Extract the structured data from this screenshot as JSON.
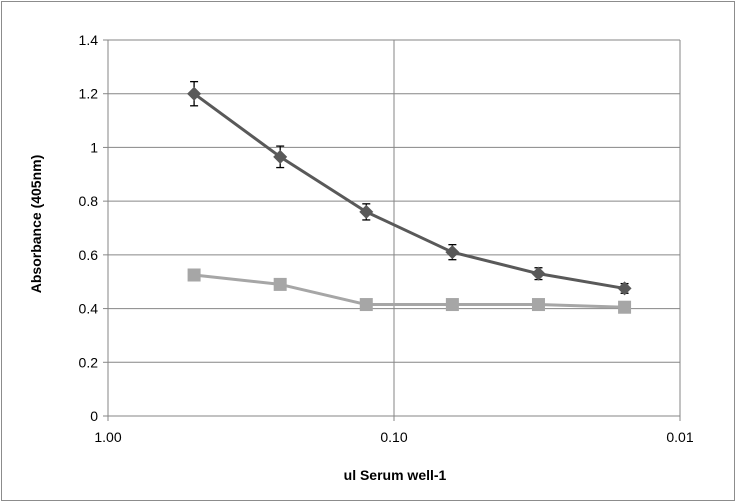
{
  "chart_data": {
    "type": "line",
    "title": "",
    "xlabel": "ul Serum well-1",
    "ylabel": "Absorbance (405nm)",
    "x_scale": "log",
    "x_reversed": true,
    "xlim": [
      1.0,
      0.01
    ],
    "ylim": [
      0,
      1.4
    ],
    "x_ticks": [
      1.0,
      0.1,
      0.01
    ],
    "x_tick_labels": [
      "1.00",
      "0.10",
      "0.01"
    ],
    "y_ticks": [
      0,
      0.2,
      0.4,
      0.6,
      0.8,
      1.0,
      1.2,
      1.4
    ],
    "y_tick_labels": [
      "0",
      "0.2",
      "0.4",
      "0.6",
      "0.8",
      "1",
      "1.2",
      "1.4"
    ],
    "grid": true,
    "legend": "none",
    "series": [
      {
        "marker": "diamond",
        "color": "#595959",
        "x": [
          0.5,
          0.25,
          0.125,
          0.0625,
          0.03125,
          0.015625
        ],
        "y": [
          1.2,
          0.965,
          0.76,
          0.61,
          0.53,
          0.475
        ],
        "error": [
          0.045,
          0.04,
          0.03,
          0.028,
          0.022,
          0.018
        ]
      },
      {
        "marker": "square",
        "color": "#a6a6a6",
        "x": [
          0.5,
          0.25,
          0.125,
          0.0625,
          0.03125,
          0.015625
        ],
        "y": [
          0.525,
          0.49,
          0.415,
          0.415,
          0.415,
          0.405
        ]
      }
    ]
  }
}
